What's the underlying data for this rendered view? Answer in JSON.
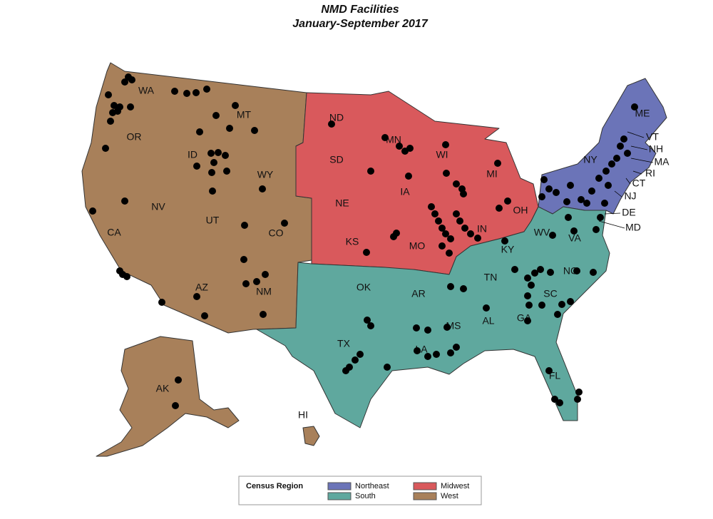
{
  "title": "NMD Facilities",
  "subtitle": "January-September 2017",
  "legend": {
    "title": "Census Region",
    "entries": [
      {
        "name": "Northeast",
        "color": "#6b74b8"
      },
      {
        "name": "Midwest",
        "color": "#d9595c"
      },
      {
        "name": "South",
        "color": "#5fa89e"
      },
      {
        "name": "West",
        "color": "#a8805a"
      }
    ]
  },
  "states": [
    "WA",
    "OR",
    "CA",
    "ID",
    "NV",
    "MT",
    "WY",
    "UT",
    "AZ",
    "CO",
    "NM",
    "AK",
    "HI",
    "ND",
    "SD",
    "NE",
    "KS",
    "MN",
    "IA",
    "MO",
    "WI",
    "MI",
    "IN",
    "OH",
    "OK",
    "TX",
    "AR",
    "LA",
    "MS",
    "AL",
    "TN",
    "KY",
    "GA",
    "FL",
    "SC",
    "NC",
    "VA",
    "WV",
    "DE",
    "MD",
    "NY",
    "ME",
    "VT",
    "NH",
    "MA",
    "RI",
    "CT",
    "NJ"
  ]
}
